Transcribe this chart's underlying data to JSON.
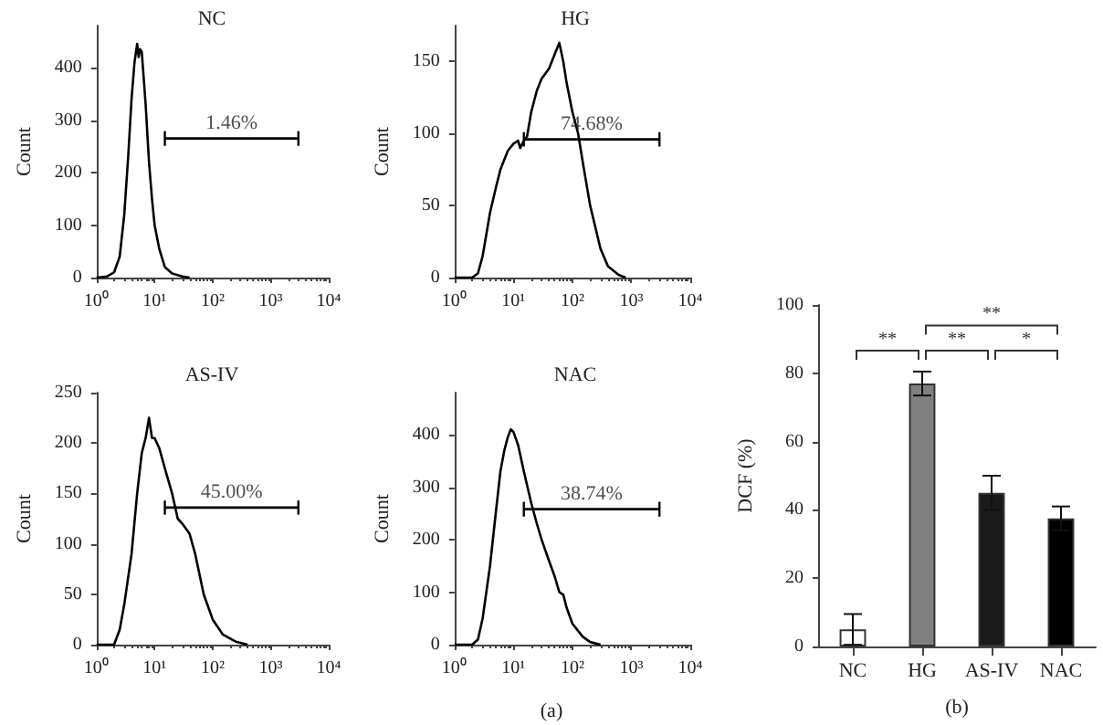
{
  "chart_data": [
    {
      "type": "line",
      "title": "NC",
      "ylabel": "Count",
      "log": "x",
      "marker": "none",
      "grid": false,
      "xlim": [
        1,
        10000
      ],
      "ylim": [
        0,
        480
      ],
      "xticks": [
        {
          "value": 1,
          "label": "10⁰"
        },
        {
          "value": 10,
          "label": "10¹"
        },
        {
          "value": 100,
          "label": "10²"
        },
        {
          "value": 1000,
          "label": "10³"
        },
        {
          "value": 10000,
          "label": "10⁴"
        }
      ],
      "yticks": [
        0,
        100,
        200,
        300,
        400
      ],
      "series": [
        {
          "color": "#000000",
          "x": [
            1,
            1.5,
            2,
            2.5,
            3,
            3.5,
            4,
            4.5,
            5,
            5.3,
            5.6,
            6,
            7,
            8,
            9,
            10,
            12,
            15,
            20,
            30,
            40
          ],
          "values": [
            0,
            2,
            10,
            40,
            120,
            230,
            340,
            410,
            445,
            420,
            435,
            430,
            330,
            220,
            150,
            100,
            55,
            20,
            8,
            2,
            0
          ]
        },
        {
          "color": "#000000",
          "x": [
            15,
            3000
          ],
          "values": [
            265,
            265
          ],
          "errors": [
            14,
            14
          ]
        }
      ],
      "annotations": [
        "1.46%"
      ]
    },
    {
      "type": "line",
      "title": "HG",
      "ylabel": "Count",
      "log": "x",
      "marker": "none",
      "grid": false,
      "xlim": [
        1,
        10000
      ],
      "ylim": [
        0,
        175
      ],
      "xticks": [
        {
          "value": 1,
          "label": "10⁰"
        },
        {
          "value": 10,
          "label": "10¹"
        },
        {
          "value": 100,
          "label": "10²"
        },
        {
          "value": 1000,
          "label": "10³"
        },
        {
          "value": 10000,
          "label": "10⁴"
        }
      ],
      "yticks": [
        0,
        50,
        100,
        150
      ],
      "series": [
        {
          "color": "#000000",
          "x": [
            1,
            2,
            2.5,
            3,
            4,
            5,
            6,
            8,
            10,
            12,
            13,
            15,
            17,
            20,
            25,
            30,
            40,
            50,
            60,
            70,
            80,
            100,
            125,
            150,
            200,
            300,
            400,
            600,
            800
          ],
          "values": [
            0,
            0,
            3,
            15,
            45,
            62,
            75,
            88,
            93,
            95,
            90,
            95,
            98,
            115,
            130,
            138,
            145,
            155,
            163,
            150,
            135,
            115,
            100,
            80,
            50,
            20,
            8,
            2,
            0
          ]
        },
        {
          "color": "#000000",
          "x": [
            15,
            3000
          ],
          "values": [
            96,
            96
          ],
          "errors": [
            5,
            5
          ]
        }
      ],
      "annotations": [
        "74.68%"
      ]
    },
    {
      "type": "line",
      "title": "AS-IV",
      "ylabel": "Count",
      "log": "x",
      "marker": "none",
      "grid": false,
      "xlim": [
        1,
        10000
      ],
      "ylim": [
        0,
        250
      ],
      "xticks": [
        {
          "value": 1,
          "label": "10⁰"
        },
        {
          "value": 10,
          "label": "10¹"
        },
        {
          "value": 100,
          "label": "10²"
        },
        {
          "value": 1000,
          "label": "10³"
        },
        {
          "value": 10000,
          "label": "10⁴"
        }
      ],
      "yticks": [
        0,
        50,
        100,
        150,
        200,
        250
      ],
      "series": [
        {
          "color": "#000000",
          "x": [
            1,
            2,
            2.5,
            3,
            4,
            5,
            6,
            7,
            8,
            9,
            10,
            12,
            15,
            20,
            25,
            30,
            40,
            50,
            70,
            100,
            150,
            250,
            400
          ],
          "values": [
            0,
            0,
            15,
            40,
            90,
            150,
            190,
            205,
            225,
            205,
            205,
            195,
            175,
            150,
            125,
            120,
            110,
            90,
            50,
            25,
            10,
            3,
            0
          ]
        },
        {
          "color": "#000000",
          "x": [
            15,
            3000
          ],
          "values": [
            136,
            136
          ],
          "errors": [
            7,
            7
          ]
        }
      ],
      "annotations": [
        "45.00%"
      ]
    },
    {
      "type": "line",
      "title": "NAC",
      "ylabel": "Count",
      "log": "x",
      "marker": "none",
      "grid": false,
      "xlim": [
        1,
        10000
      ],
      "ylim": [
        0,
        480
      ],
      "xticks": [
        {
          "value": 1,
          "label": "10⁰"
        },
        {
          "value": 10,
          "label": "10¹"
        },
        {
          "value": 100,
          "label": "10²"
        },
        {
          "value": 1000,
          "label": "10³"
        },
        {
          "value": 10000,
          "label": "10⁴"
        }
      ],
      "yticks": [
        0,
        100,
        200,
        300,
        400
      ],
      "series": [
        {
          "color": "#000000",
          "x": [
            1,
            2,
            2.5,
            3,
            4,
            5,
            6,
            7,
            8,
            9,
            10,
            12,
            15,
            20,
            25,
            30,
            40,
            50,
            60,
            70,
            80,
            100,
            150,
            200,
            300
          ],
          "values": [
            0,
            0,
            10,
            50,
            150,
            250,
            330,
            370,
            395,
            410,
            405,
            380,
            330,
            270,
            230,
            200,
            160,
            130,
            100,
            95,
            70,
            40,
            15,
            5,
            0
          ]
        },
        {
          "color": "#000000",
          "x": [
            15,
            3000
          ],
          "values": [
            258,
            258
          ],
          "errors": [
            14,
            14
          ]
        }
      ],
      "annotations": [
        "38.74%",
        "(a)"
      ]
    },
    {
      "type": "bar",
      "ylabel": "DCF (%)",
      "categories": [
        "NC",
        "HG",
        "AS-IV",
        "NAC"
      ],
      "values": [
        5,
        77,
        45,
        37.5
      ],
      "colors": [
        "#ffffff",
        "#808080",
        "#1a1a1a",
        "#000000"
      ],
      "errors": [
        4.5,
        3.5,
        5,
        3.5
      ],
      "ylim": [
        0,
        100
      ],
      "yticks": [
        0,
        20,
        40,
        60,
        80,
        100
      ],
      "grid": false,
      "annotations": [
        "**",
        "**",
        "*",
        "**",
        "(b)"
      ]
    }
  ]
}
